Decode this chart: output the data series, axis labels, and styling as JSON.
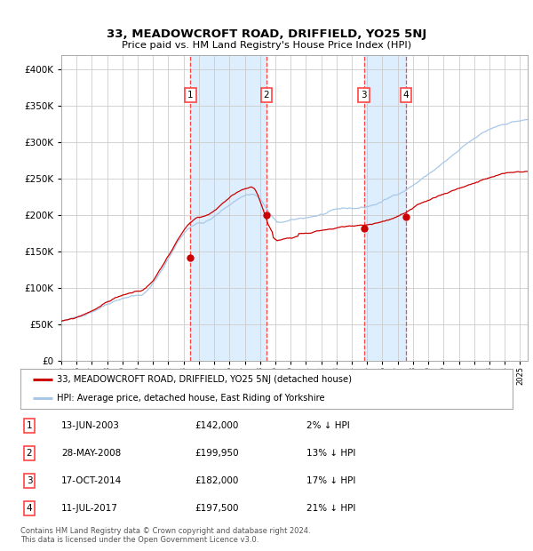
{
  "title": "33, MEADOWCROFT ROAD, DRIFFIELD, YO25 5NJ",
  "subtitle": "Price paid vs. HM Land Registry's House Price Index (HPI)",
  "legend_line1": "33, MEADOWCROFT ROAD, DRIFFIELD, YO25 5NJ (detached house)",
  "legend_line2": "HPI: Average price, detached house, East Riding of Yorkshire",
  "footer_line1": "Contains HM Land Registry data © Crown copyright and database right 2024.",
  "footer_line2": "This data is licensed under the Open Government Licence v3.0.",
  "transactions": [
    {
      "num": 1,
      "date": "13-JUN-2003",
      "price": 142000,
      "year": 2003.45,
      "pct": "2% ↓ HPI"
    },
    {
      "num": 2,
      "date": "28-MAY-2008",
      "price": 199950,
      "year": 2008.41,
      "pct": "13% ↓ HPI"
    },
    {
      "num": 3,
      "date": "17-OCT-2014",
      "price": 182000,
      "year": 2014.79,
      "pct": "17% ↓ HPI"
    },
    {
      "num": 4,
      "date": "11-JUL-2017",
      "price": 197500,
      "year": 2017.53,
      "pct": "21% ↓ HPI"
    }
  ],
  "hpi_color": "#a8c8e8",
  "price_color": "#cc0000",
  "bg_color": "#ffffff",
  "shaded_color": "#ddeeff",
  "grid_color": "#cccccc",
  "dashed_color": "#ff4444",
  "ylim": [
    0,
    420000
  ],
  "yticks": [
    0,
    50000,
    100000,
    150000,
    200000,
    250000,
    300000,
    350000,
    400000
  ],
  "xlim_start": 1995.0,
  "xlim_end": 2025.5
}
